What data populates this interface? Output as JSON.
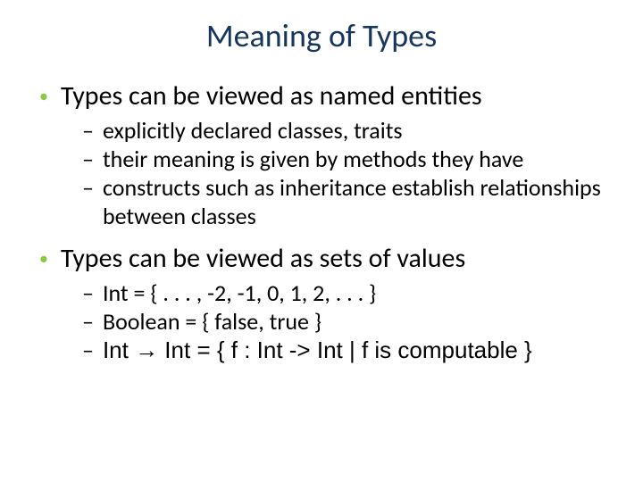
{
  "title": "Meaning of Types",
  "title_color": "#17365d",
  "bullet_color": "#89ca41",
  "text_color": "#000000",
  "background_color": "#ffffff",
  "title_fontsize": 36,
  "top_fontsize": 30,
  "sub_fontsize": 26,
  "points": [
    {
      "text": "Types can be viewed as named entities",
      "sub": [
        "explicitly declared classes, traits",
        "their meaning is given by methods they have",
        "constructs such as inheritance establish relationships between classes"
      ]
    },
    {
      "text": "Types can be viewed as sets of values",
      "sub": [
        "Int = { . . . , -2, -1, 0, 1, 2, . . . }",
        "Boolean = { false, true }",
        "Int → Int = { f : Int -> Int | f is computable }"
      ]
    }
  ]
}
